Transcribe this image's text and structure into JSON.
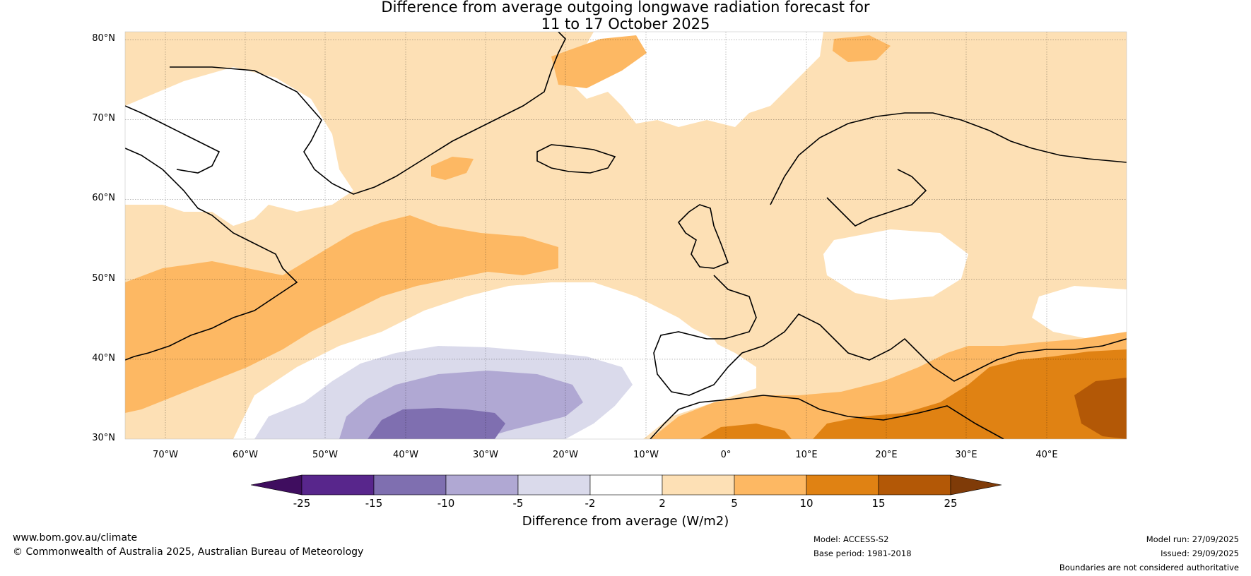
{
  "title": {
    "line1": "Difference from average outgoing longwave radiation forecast for",
    "line2": "11 to 17 October 2025"
  },
  "map": {
    "region": "North Atlantic and Europe",
    "lat_labels": [
      "80°N",
      "70°N",
      "60°N",
      "50°N",
      "40°N",
      "30°N"
    ],
    "lon_labels": [
      "70°W",
      "60°W",
      "50°W",
      "40°W",
      "30°W",
      "20°W",
      "10°W",
      "0°",
      "10°E",
      "20°E",
      "30°E",
      "40°E"
    ],
    "lat_range": [
      30,
      81
    ],
    "lon_range": [
      -75,
      50
    ]
  },
  "colorbar": {
    "title": "Difference from average (W/m2)",
    "ticks": [
      "-25",
      "-15",
      "-10",
      "-5",
      "-2",
      "2",
      "5",
      "10",
      "15",
      "25"
    ],
    "colors": [
      "#3f0d5f",
      "#58268c",
      "#7f6fb0",
      "#b0a8d3",
      "#dadaeb",
      "#ffffff",
      "#fde0b5",
      "#fdb863",
      "#e08213",
      "#b35806",
      "#7f3b08"
    ]
  },
  "footer": {
    "website": "www.bom.gov.au/climate",
    "copyright": "© Commonwealth of Australia 2025, Australian Bureau of Meteorology",
    "model": "Model: ACCESS-S2",
    "base_period": "Base period: 1981-2018",
    "model_run": "Model run: 27/09/2025",
    "issued": "Issued: 29/09/2025",
    "disclaimer": "Boundaries are not considered authoritative"
  }
}
